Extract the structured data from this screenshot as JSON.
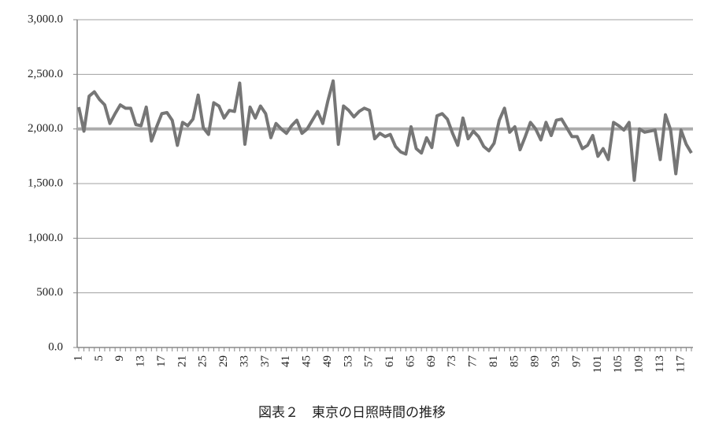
{
  "chart_data": {
    "type": "line",
    "caption": "図表２　東京の日照時間の推移",
    "categories": [
      "1",
      null,
      null,
      null,
      "5",
      null,
      null,
      null,
      "9",
      null,
      null,
      null,
      "13",
      null,
      null,
      null,
      "17",
      null,
      null,
      null,
      "21",
      null,
      null,
      null,
      "25",
      null,
      null,
      null,
      "29",
      null,
      null,
      null,
      "33",
      null,
      null,
      null,
      "37",
      null,
      null,
      null,
      "41",
      null,
      null,
      null,
      "45",
      null,
      null,
      null,
      "49",
      null,
      null,
      null,
      "53",
      null,
      null,
      null,
      "57",
      null,
      null,
      null,
      "61",
      null,
      null,
      null,
      "65",
      null,
      null,
      null,
      "69",
      null,
      null,
      null,
      "73",
      null,
      null,
      null,
      "77",
      null,
      null,
      null,
      "81",
      null,
      null,
      null,
      "85",
      null,
      null,
      null,
      "89",
      null,
      null,
      null,
      "93",
      null,
      null,
      null,
      "97",
      null,
      null,
      null,
      "101",
      null,
      null,
      null,
      "105",
      null,
      null,
      null,
      "109",
      null,
      null,
      null,
      "113",
      null,
      null,
      null,
      "117",
      null,
      null
    ],
    "series": [
      {
        "color": "#767676",
        "values": [
          2200,
          1980,
          2300,
          2340,
          2270,
          2220,
          2050,
          2140,
          2220,
          2190,
          2190,
          2040,
          2030,
          2200,
          1890,
          2020,
          2140,
          2150,
          2080,
          1850,
          2060,
          2030,
          2090,
          2310,
          2010,
          1950,
          2240,
          2210,
          2100,
          2170,
          2160,
          2420,
          1860,
          2200,
          2100,
          2210,
          2140,
          1920,
          2050,
          2000,
          1960,
          2030,
          2080,
          1960,
          2000,
          2080,
          2160,
          2050,
          2260,
          2440,
          1860,
          2210,
          2170,
          2110,
          2160,
          2190,
          2170,
          1910,
          1960,
          1930,
          1950,
          1840,
          1790,
          1770,
          2020,
          1820,
          1780,
          1920,
          1830,
          2120,
          2140,
          2090,
          1960,
          1850,
          2100,
          1910,
          1980,
          1930,
          1840,
          1800,
          1870,
          2080,
          2190,
          1970,
          2020,
          1810,
          1930,
          2060,
          2000,
          1900,
          2060,
          1940,
          2080,
          2090,
          2010,
          1930,
          1930,
          1820,
          1850,
          1940,
          1750,
          1820,
          1720,
          2060,
          2030,
          1990,
          2060,
          1530,
          2000,
          1970,
          1980,
          1990,
          1720,
          2130,
          1990,
          1590,
          1990,
          1860,
          1780
        ]
      }
    ],
    "reference_line": {
      "value": 2000,
      "color": "#ababab"
    },
    "ylim": [
      0,
      3000
    ],
    "yticks": [
      {
        "value": 0,
        "label": "0.0"
      },
      {
        "value": 500,
        "label": "500.0"
      },
      {
        "value": 1000,
        "label": "1,000.0"
      },
      {
        "value": 1500,
        "label": "1,500.0"
      },
      {
        "value": 2000,
        "label": "2,000.0"
      },
      {
        "value": 2500,
        "label": "2,500.0"
      },
      {
        "value": 3000,
        "label": "3,000.0"
      }
    ],
    "grid": true
  }
}
